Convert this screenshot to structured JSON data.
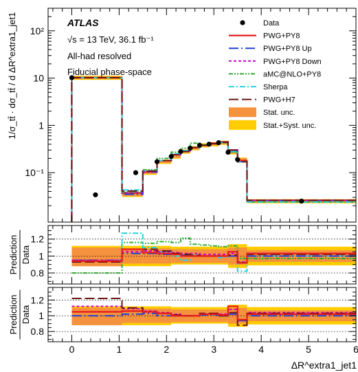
{
  "chart_data": {
    "type": "line",
    "title": "ATLAS",
    "annotations": [
      "√s = 13 TeV, 36.1 fb⁻¹",
      "All-had resolved",
      "Fiducial phase-space"
    ],
    "xlabel": "ΔR^extra1_jet1",
    "xlim": [
      -0.5,
      6
    ],
    "x_ticks": [
      "0",
      "1",
      "2",
      "3",
      "4",
      "5",
      "6"
    ],
    "bin_edges": [
      0,
      1.06,
      1.5,
      1.8,
      2.1,
      2.3,
      2.5,
      2.7,
      2.9,
      3.1,
      3.3,
      3.5,
      3.7,
      6
    ],
    "main_panel": {
      "ylabel": "1/σ_tt̄ · dσ_tt̄ / d ΔR^extra1_jet1",
      "yscale": "log",
      "ylim": [
        0.009,
        300
      ],
      "y_ticks": [
        {
          "v": 0.1,
          "label": "10⁻¹"
        },
        {
          "v": 1,
          "label": "1"
        },
        {
          "v": 10,
          "label": "10"
        },
        {
          "v": 100,
          "label": "10²"
        }
      ],
      "data": [
        {
          "x": 0,
          "y": 10.2
        },
        {
          "x": 0.5,
          "y": 0.034
        },
        {
          "x": 1.35,
          "y": 0.1
        },
        {
          "x": 1.8,
          "y": 0.17
        },
        {
          "x": 2.1,
          "y": 0.22
        },
        {
          "x": 2.3,
          "y": 0.28
        },
        {
          "x": 2.5,
          "y": 0.33
        },
        {
          "x": 2.7,
          "y": 0.38
        },
        {
          "x": 2.9,
          "y": 0.4
        },
        {
          "x": 3.1,
          "y": 0.43
        },
        {
          "x": 3.3,
          "y": 0.27
        },
        {
          "x": 3.5,
          "y": 0.19
        },
        {
          "x": 4.85,
          "y": 0.025
        }
      ],
      "stat_unc_rel": 0.06,
      "syst_unc_rel": 0.1,
      "series": [
        {
          "name": "PWG+PY8",
          "color": "#e41a1c",
          "dash": "",
          "width": 2.2,
          "values": [
            10.2,
            0.037,
            0.104,
            0.18,
            0.24,
            0.29,
            0.34,
            0.38,
            0.42,
            0.45,
            0.3,
            0.18,
            0.026
          ]
        },
        {
          "name": "PWG+PY8 Up",
          "color": "#1f3fd6",
          "dash": "14,4,2,4",
          "width": 2,
          "values": [
            10.2,
            0.035,
            0.103,
            0.18,
            0.24,
            0.29,
            0.34,
            0.38,
            0.41,
            0.44,
            0.29,
            0.17,
            0.026
          ]
        },
        {
          "name": "PWG+PY8 Down",
          "color": "#cc00cc",
          "dash": "4,3",
          "width": 2,
          "values": [
            10.2,
            0.038,
            0.106,
            0.18,
            0.24,
            0.29,
            0.34,
            0.38,
            0.41,
            0.44,
            0.3,
            0.17,
            0.026
          ]
        },
        {
          "name": "aMC@NLO+PY8",
          "color": "#33aa33",
          "dash": "6,2,2,2,2,2",
          "width": 2,
          "values": [
            10.2,
            0.039,
            0.115,
            0.2,
            0.27,
            0.33,
            0.42,
            0.39,
            0.41,
            0.43,
            0.27,
            0.17,
            0.024
          ]
        },
        {
          "name": "Sherpa",
          "color": "#22d3e0",
          "dash": "8,3,2,3",
          "width": 2,
          "values": [
            10.2,
            0.043,
            0.11,
            0.18,
            0.25,
            0.29,
            0.34,
            0.38,
            0.41,
            0.44,
            0.28,
            0.17,
            0.024
          ]
        },
        {
          "name": "PWG+H7",
          "color": "#6b1212",
          "dash": "14,5",
          "width": 2,
          "values": [
            10.2,
            0.041,
            0.108,
            0.18,
            0.24,
            0.28,
            0.34,
            0.38,
            0.41,
            0.44,
            0.3,
            0.17,
            0.026
          ]
        }
      ]
    },
    "ratio_panels": [
      {
        "ylabel_top": "Prediction",
        "ylabel_bottom": "Data",
        "ylim": [
          0.67,
          1.36
        ],
        "y_ticks": [
          {
            "v": 0.8,
            "label": "0.8"
          },
          {
            "v": 1,
            "label": "1"
          },
          {
            "v": 1.2,
            "label": "1.2"
          }
        ],
        "band_stat": [
          0.88,
          0.91,
          0.91,
          0.91,
          0.92,
          0.92,
          0.92,
          0.92,
          0.92,
          0.92,
          0.9,
          0.9,
          0.93
        ],
        "band_stat_hi": [
          1.1,
          1.09,
          1.09,
          1.09,
          1.08,
          1.08,
          1.08,
          1.08,
          1.08,
          1.08,
          1.1,
          1.1,
          1.07
        ],
        "band_syst": [
          0.88,
          0.88,
          0.88,
          0.88,
          0.9,
          0.9,
          0.9,
          0.9,
          0.9,
          0.9,
          0.86,
          0.86,
          0.89
        ],
        "band_syst_hi": [
          1.12,
          1.12,
          1.12,
          1.12,
          1.11,
          1.11,
          1.11,
          1.11,
          1.11,
          1.11,
          1.14,
          1.14,
          1.11
        ],
        "series": [
          {
            "name": "aMC@NLO+PY8",
            "values": [
              0.8,
              1.16,
              1.15,
              1.17,
              1.16,
              1.21,
              1.14,
              1.13,
              1.12,
              1.11,
              1.12,
              0.97,
              0.97
            ]
          },
          {
            "name": "Sherpa",
            "values": [
              0.95,
              1.27,
              1.1,
              1.05,
              1.0,
              0.95,
              1.02,
              1.0,
              1.0,
              0.98,
              1.0,
              0.82,
              1.0
            ]
          },
          {
            "name": "PWG+PY8 Up",
            "values": [
              0.95,
              1.03,
              1.03,
              1.02,
              1.02,
              1.01,
              1.0,
              1.0,
              1.0,
              1.0,
              1.0,
              0.92,
              1.0
            ]
          },
          {
            "name": "PWG+PY8 Down",
            "values": [
              0.95,
              1.05,
              1.06,
              1.05,
              1.04,
              1.03,
              1.03,
              1.02,
              1.02,
              1.02,
              1.03,
              0.93,
              1.03
            ]
          },
          {
            "name": "PWG+H7",
            "values": [
              0.93,
              1.08,
              1.08,
              1.06,
              1.03,
              1.02,
              1.01,
              1.0,
              1.0,
              1.0,
              1.01,
              0.92,
              1.02
            ]
          },
          {
            "name": "PWG+PY8",
            "values": [
              0.94,
              1.08,
              1.04,
              1.03,
              1.02,
              1.0,
              1.0,
              1.0,
              1.0,
              1.0,
              1.05,
              0.92,
              1.03
            ]
          }
        ]
      },
      {
        "ylabel_top": "Prediction",
        "ylabel_bottom": "Data",
        "ylim": [
          0.67,
          1.36
        ],
        "y_ticks": [
          {
            "v": 0.8,
            "label": "0.8"
          },
          {
            "v": 1,
            "label": "1"
          },
          {
            "v": 1.2,
            "label": "1.2"
          }
        ],
        "band_stat": [
          0.88,
          0.91,
          0.91,
          0.91,
          0.92,
          0.92,
          0.92,
          0.92,
          0.92,
          0.92,
          0.9,
          0.9,
          0.93
        ],
        "band_stat_hi": [
          1.1,
          1.09,
          1.09,
          1.09,
          1.08,
          1.08,
          1.08,
          1.08,
          1.08,
          1.08,
          1.1,
          1.1,
          1.07
        ],
        "band_syst": [
          0.88,
          0.88,
          0.88,
          0.88,
          0.9,
          0.9,
          0.9,
          0.9,
          0.9,
          0.9,
          0.86,
          0.86,
          0.89
        ],
        "band_syst_hi": [
          1.12,
          1.12,
          1.12,
          1.12,
          1.11,
          1.11,
          1.11,
          1.11,
          1.11,
          1.11,
          1.14,
          1.14,
          1.11
        ],
        "series": [
          {
            "name": "PWG+PY8 Down",
            "values": [
              1.12,
              1.09,
              1.06,
              1.04,
              1.02,
              1.0,
              1.0,
              1.02,
              1.02,
              1.02,
              1.08,
              0.94,
              1.04
            ]
          },
          {
            "name": "PWG+PY8 Up",
            "values": [
              1.0,
              1.02,
              1.03,
              1.0,
              1.0,
              1.0,
              1.0,
              1.01,
              1.01,
              1.0,
              1.02,
              0.94,
              1.0
            ]
          },
          {
            "name": "PWG+H7",
            "values": [
              1.22,
              1.1,
              1.05,
              1.03,
              1.01,
              1.0,
              1.0,
              1.03,
              1.03,
              1.0,
              1.04,
              0.88,
              1.03
            ]
          },
          {
            "name": "PWG+PY8",
            "values": [
              1.05,
              1.06,
              1.05,
              1.03,
              1.0,
              1.0,
              1.0,
              1.02,
              1.02,
              1.01,
              1.12,
              0.95,
              1.02
            ]
          }
        ]
      }
    ],
    "legend": {
      "placement": "top-right",
      "entries": [
        "Data",
        "PWG+PY8",
        "PWG+PY8 Up",
        "PWG+PY8 Down",
        "aMC@NLO+PY8",
        "Sherpa",
        "PWG+H7",
        "Stat. unc.",
        "Stat.+Syst. unc."
      ]
    },
    "colors": {
      "stat_unc": "#f5923e",
      "syst_unc": "#ffcc00",
      "data": "#000000"
    }
  }
}
